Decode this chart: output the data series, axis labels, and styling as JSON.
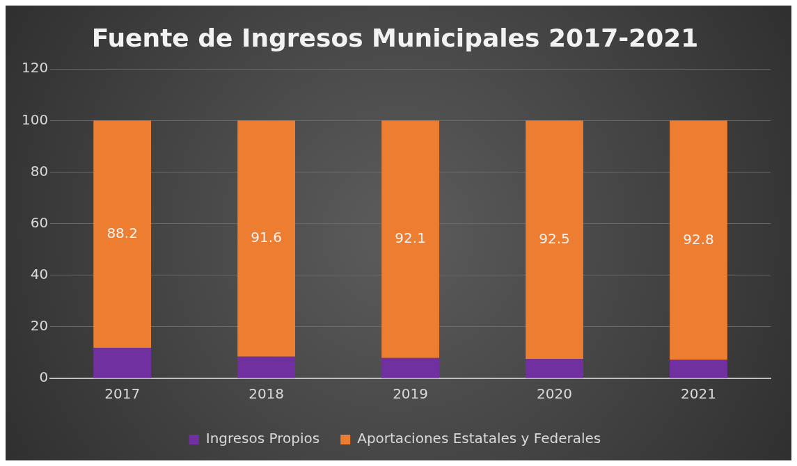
{
  "chart_data": {
    "type": "bar",
    "title": "Fuente de Ingresos Municipales 2017-2021",
    "categories": [
      "2017",
      "2018",
      "2019",
      "2020",
      "2021"
    ],
    "series": [
      {
        "name": "Ingresos Propios",
        "color": "#7030a0",
        "values": [
          11.8,
          8.4,
          7.9,
          7.5,
          7.2
        ]
      },
      {
        "name": "Aportaciones Estatales y Federales",
        "color": "#ed7d31",
        "values": [
          88.2,
          91.6,
          92.1,
          92.5,
          92.8
        ],
        "value_labels": [
          "88.2",
          "91.6",
          "92.1",
          "92.5",
          "92.8"
        ]
      }
    ],
    "stacked": true,
    "ylim": [
      0,
      120
    ],
    "yticks": [
      0,
      20,
      40,
      60,
      80,
      100,
      120
    ],
    "grid": "y",
    "legend": "bottom"
  }
}
